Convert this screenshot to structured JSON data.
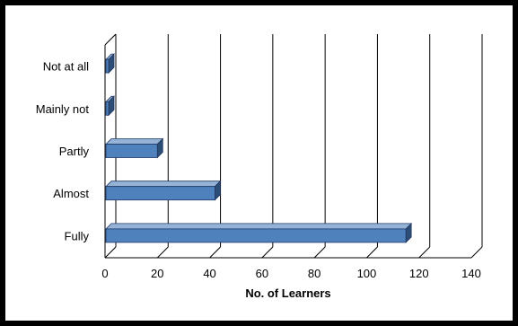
{
  "chart_data": {
    "type": "bar",
    "orientation": "horizontal",
    "style": "3d",
    "categories": [
      "Not at all",
      "Mainly not",
      "Partly",
      "Almost",
      "Fully"
    ],
    "values": [
      1,
      1,
      20,
      42,
      115
    ],
    "xlabel": "No. of Learners",
    "ylabel": "",
    "xlim": [
      0,
      140
    ],
    "xticks": [
      0,
      20,
      40,
      60,
      80,
      100,
      120,
      140
    ],
    "grid": true,
    "legend": "none",
    "colors": {
      "bar_front": "#4F81BD",
      "bar_top": "#95B3D7",
      "bar_side": "#2C4D75",
      "bar_edge": "#1F3864",
      "grid": "#000000"
    }
  }
}
